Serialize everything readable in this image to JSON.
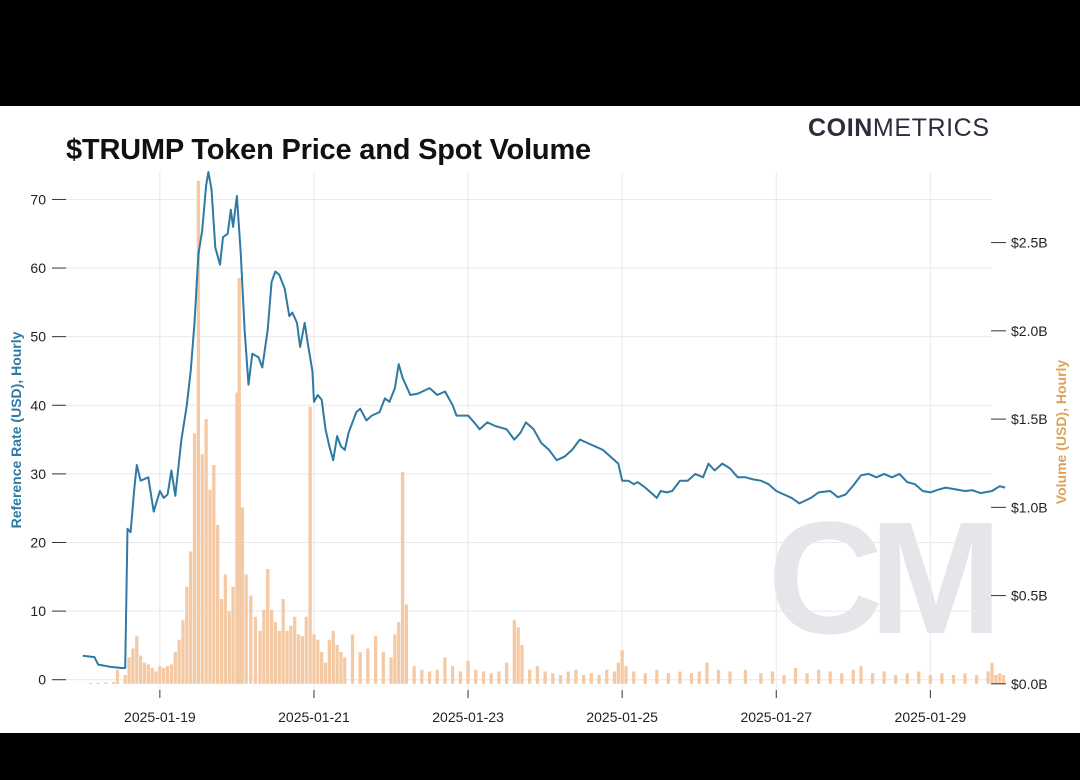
{
  "title": "$TRUMP Token Price and Spot Volume",
  "brand": {
    "strong": "COIN",
    "light": "METRICS"
  },
  "watermark": "CM",
  "colors": {
    "price": "#2e7aa3",
    "volume": "#f4c9a3",
    "volume_label": "#e0a25a",
    "grid": "#e9e9ee",
    "text": "#222222"
  },
  "chart_data": {
    "type": "line",
    "title": "$TRUMP Token Price and Spot Volume",
    "xlabel": "",
    "x_ticks": [
      "2025-01-19",
      "2025-01-21",
      "2025-01-23",
      "2025-01-25",
      "2025-01-27",
      "2025-01-29"
    ],
    "x_range_days": [
      -1.4,
      10.8
    ],
    "x_tick_days": [
      0,
      2,
      4,
      6,
      8,
      10
    ],
    "y_left": {
      "label": "Reference Rate (USD), Hourly",
      "range": [
        -1.5,
        74
      ],
      "ticks": [
        0,
        10,
        20,
        30,
        40,
        50,
        60,
        70
      ],
      "tick_labels": [
        "0",
        "10",
        "20",
        "30",
        "40",
        "50",
        "60",
        "70"
      ]
    },
    "y_right": {
      "label": "Volume (USD), Hourly",
      "range_billions": [
        -0.035,
        2.9
      ],
      "ticks": [
        0,
        0.5,
        1.0,
        1.5,
        2.0,
        2.5
      ],
      "tick_labels": [
        "$0.0B",
        "$0.5B",
        "$1.0B",
        "$1.5B",
        "$2.0B",
        "$2.5B"
      ]
    },
    "series": [
      {
        "name": "Reference Rate (USD), Hourly",
        "type": "line",
        "points": [
          [
            -1.0,
            3.5
          ],
          [
            -0.85,
            3.3
          ],
          [
            -0.8,
            2.2
          ],
          [
            -0.65,
            1.9
          ],
          [
            -0.5,
            1.7
          ],
          [
            -0.45,
            1.7
          ],
          [
            -0.42,
            22
          ],
          [
            -0.38,
            21.5
          ],
          [
            -0.33,
            28
          ],
          [
            -0.3,
            31.3
          ],
          [
            -0.25,
            29
          ],
          [
            -0.15,
            29.5
          ],
          [
            -0.08,
            24.5
          ],
          [
            0.0,
            27.5
          ],
          [
            0.05,
            26.5
          ],
          [
            0.1,
            27
          ],
          [
            0.15,
            30.5
          ],
          [
            0.2,
            26.8
          ],
          [
            0.28,
            35
          ],
          [
            0.35,
            40
          ],
          [
            0.4,
            45
          ],
          [
            0.45,
            52
          ],
          [
            0.5,
            62
          ],
          [
            0.55,
            65.5
          ],
          [
            0.6,
            72
          ],
          [
            0.63,
            74
          ],
          [
            0.67,
            71.5
          ],
          [
            0.72,
            63
          ],
          [
            0.78,
            60.5
          ],
          [
            0.82,
            64.5
          ],
          [
            0.88,
            65
          ],
          [
            0.92,
            68.5
          ],
          [
            0.95,
            66
          ],
          [
            1.0,
            70.5
          ],
          [
            1.05,
            62
          ],
          [
            1.1,
            51
          ],
          [
            1.15,
            43
          ],
          [
            1.2,
            47.5
          ],
          [
            1.28,
            47
          ],
          [
            1.33,
            45.5
          ],
          [
            1.4,
            51
          ],
          [
            1.45,
            58
          ],
          [
            1.5,
            59.5
          ],
          [
            1.55,
            59
          ],
          [
            1.62,
            57
          ],
          [
            1.68,
            53
          ],
          [
            1.72,
            53.5
          ],
          [
            1.78,
            52
          ],
          [
            1.82,
            48.5
          ],
          [
            1.88,
            52
          ],
          [
            1.92,
            49
          ],
          [
            1.98,
            45
          ],
          [
            2.0,
            40.5
          ],
          [
            2.05,
            41.5
          ],
          [
            2.1,
            40.8
          ],
          [
            2.15,
            36.5
          ],
          [
            2.2,
            34
          ],
          [
            2.25,
            32
          ],
          [
            2.3,
            35.5
          ],
          [
            2.35,
            34
          ],
          [
            2.4,
            33.5
          ],
          [
            2.45,
            36
          ],
          [
            2.55,
            39
          ],
          [
            2.6,
            39.5
          ],
          [
            2.68,
            37.8
          ],
          [
            2.75,
            38.5
          ],
          [
            2.85,
            39
          ],
          [
            2.92,
            41
          ],
          [
            2.98,
            40.5
          ],
          [
            3.05,
            42.5
          ],
          [
            3.1,
            46
          ],
          [
            3.15,
            44
          ],
          [
            3.25,
            41.5
          ],
          [
            3.35,
            41.7
          ],
          [
            3.5,
            42.5
          ],
          [
            3.55,
            42
          ],
          [
            3.6,
            41.5
          ],
          [
            3.7,
            42
          ],
          [
            3.8,
            40
          ],
          [
            3.85,
            38.5
          ],
          [
            4.0,
            38.5
          ],
          [
            4.08,
            37.5
          ],
          [
            4.15,
            36.5
          ],
          [
            4.25,
            37.5
          ],
          [
            4.35,
            37
          ],
          [
            4.5,
            36.5
          ],
          [
            4.6,
            35
          ],
          [
            4.68,
            36
          ],
          [
            4.75,
            37.5
          ],
          [
            4.85,
            36.5
          ],
          [
            4.95,
            34.5
          ],
          [
            5.05,
            33.5
          ],
          [
            5.15,
            32
          ],
          [
            5.25,
            32.5
          ],
          [
            5.35,
            33.5
          ],
          [
            5.45,
            35
          ],
          [
            5.55,
            34.5
          ],
          [
            5.65,
            34
          ],
          [
            5.75,
            33.5
          ],
          [
            5.85,
            32.5
          ],
          [
            5.95,
            31.5
          ],
          [
            6.0,
            29
          ],
          [
            6.08,
            29
          ],
          [
            6.15,
            28.5
          ],
          [
            6.2,
            28.8
          ],
          [
            6.3,
            28
          ],
          [
            6.45,
            26.5
          ],
          [
            6.5,
            27.5
          ],
          [
            6.58,
            27.3
          ],
          [
            6.65,
            27.5
          ],
          [
            6.75,
            29
          ],
          [
            6.85,
            29
          ],
          [
            6.95,
            30
          ],
          [
            7.05,
            29.5
          ],
          [
            7.12,
            31.5
          ],
          [
            7.2,
            30.5
          ],
          [
            7.3,
            31.5
          ],
          [
            7.4,
            30.8
          ],
          [
            7.5,
            29.5
          ],
          [
            7.6,
            29.5
          ],
          [
            7.7,
            29.2
          ],
          [
            7.8,
            29
          ],
          [
            7.9,
            28.5
          ],
          [
            8.0,
            27.5
          ],
          [
            8.1,
            27
          ],
          [
            8.2,
            26.5
          ],
          [
            8.3,
            25.7
          ],
          [
            8.45,
            26.5
          ],
          [
            8.55,
            27.3
          ],
          [
            8.7,
            27.5
          ],
          [
            8.8,
            26.6
          ],
          [
            8.9,
            27
          ],
          [
            9.0,
            28.3
          ],
          [
            9.1,
            29.8
          ],
          [
            9.2,
            30
          ],
          [
            9.3,
            29.5
          ],
          [
            9.4,
            30
          ],
          [
            9.5,
            29.5
          ],
          [
            9.6,
            30
          ],
          [
            9.7,
            28.8
          ],
          [
            9.8,
            28.5
          ],
          [
            9.9,
            27.5
          ],
          [
            10.0,
            27.3
          ],
          [
            10.1,
            27.7
          ],
          [
            10.2,
            28
          ],
          [
            10.3,
            27.8
          ],
          [
            10.45,
            27.5
          ],
          [
            10.55,
            27.6
          ],
          [
            10.65,
            27.2
          ],
          [
            10.8,
            27.5
          ],
          [
            10.9,
            28.2
          ],
          [
            10.97,
            28
          ]
        ]
      },
      {
        "name": "Volume (USD), Hourly",
        "type": "bar",
        "values_billions": [
          [
            -0.9,
            0.005
          ],
          [
            -0.8,
            0.005
          ],
          [
            -0.7,
            0.008
          ],
          [
            -0.6,
            0.01
          ],
          [
            -0.55,
            0.08
          ],
          [
            -0.45,
            0.05
          ],
          [
            -0.4,
            0.15
          ],
          [
            -0.35,
            0.2
          ],
          [
            -0.3,
            0.27
          ],
          [
            -0.25,
            0.16
          ],
          [
            -0.2,
            0.12
          ],
          [
            -0.15,
            0.11
          ],
          [
            -0.1,
            0.09
          ],
          [
            -0.05,
            0.07
          ],
          [
            0.0,
            0.1
          ],
          [
            0.05,
            0.09
          ],
          [
            0.1,
            0.1
          ],
          [
            0.15,
            0.11
          ],
          [
            0.2,
            0.18
          ],
          [
            0.25,
            0.25
          ],
          [
            0.3,
            0.36
          ],
          [
            0.35,
            0.55
          ],
          [
            0.4,
            0.75
          ],
          [
            0.45,
            1.42
          ],
          [
            0.5,
            2.85
          ],
          [
            0.55,
            1.3
          ],
          [
            0.6,
            1.5
          ],
          [
            0.65,
            1.1
          ],
          [
            0.7,
            1.24
          ],
          [
            0.75,
            0.9
          ],
          [
            0.8,
            0.48
          ],
          [
            0.85,
            0.62
          ],
          [
            0.9,
            0.41
          ],
          [
            0.95,
            0.55
          ],
          [
            1.0,
            1.65
          ],
          [
            1.03,
            2.3
          ],
          [
            1.07,
            1.0
          ],
          [
            1.12,
            0.62
          ],
          [
            1.18,
            0.5
          ],
          [
            1.24,
            0.38
          ],
          [
            1.3,
            0.3
          ],
          [
            1.35,
            0.42
          ],
          [
            1.4,
            0.65
          ],
          [
            1.45,
            0.42
          ],
          [
            1.5,
            0.35
          ],
          [
            1.55,
            0.3
          ],
          [
            1.6,
            0.48
          ],
          [
            1.65,
            0.3
          ],
          [
            1.7,
            0.33
          ],
          [
            1.75,
            0.38
          ],
          [
            1.8,
            0.28
          ],
          [
            1.85,
            0.27
          ],
          [
            1.9,
            0.38
          ],
          [
            1.95,
            1.57
          ],
          [
            2.0,
            0.28
          ],
          [
            2.05,
            0.25
          ],
          [
            2.1,
            0.18
          ],
          [
            2.15,
            0.12
          ],
          [
            2.2,
            0.25
          ],
          [
            2.25,
            0.3
          ],
          [
            2.3,
            0.22
          ],
          [
            2.35,
            0.18
          ],
          [
            2.4,
            0.15
          ],
          [
            2.5,
            0.28
          ],
          [
            2.6,
            0.18
          ],
          [
            2.7,
            0.2
          ],
          [
            2.8,
            0.27
          ],
          [
            2.9,
            0.18
          ],
          [
            3.0,
            0.15
          ],
          [
            3.05,
            0.28
          ],
          [
            3.1,
            0.35
          ],
          [
            3.15,
            1.2
          ],
          [
            3.2,
            0.45
          ],
          [
            3.3,
            0.1
          ],
          [
            3.4,
            0.08
          ],
          [
            3.5,
            0.07
          ],
          [
            3.6,
            0.08
          ],
          [
            3.7,
            0.15
          ],
          [
            3.8,
            0.1
          ],
          [
            3.9,
            0.07
          ],
          [
            4.0,
            0.13
          ],
          [
            4.1,
            0.08
          ],
          [
            4.2,
            0.07
          ],
          [
            4.3,
            0.06
          ],
          [
            4.4,
            0.07
          ],
          [
            4.5,
            0.12
          ],
          [
            4.6,
            0.36
          ],
          [
            4.65,
            0.32
          ],
          [
            4.7,
            0.22
          ],
          [
            4.8,
            0.08
          ],
          [
            4.9,
            0.1
          ],
          [
            5.0,
            0.07
          ],
          [
            5.1,
            0.06
          ],
          [
            5.2,
            0.05
          ],
          [
            5.3,
            0.07
          ],
          [
            5.4,
            0.08
          ],
          [
            5.5,
            0.05
          ],
          [
            5.6,
            0.06
          ],
          [
            5.7,
            0.05
          ],
          [
            5.8,
            0.08
          ],
          [
            5.9,
            0.07
          ],
          [
            5.95,
            0.12
          ],
          [
            6.0,
            0.19
          ],
          [
            6.05,
            0.1
          ],
          [
            6.15,
            0.07
          ],
          [
            6.3,
            0.06
          ],
          [
            6.45,
            0.08
          ],
          [
            6.6,
            0.06
          ],
          [
            6.75,
            0.07
          ],
          [
            6.9,
            0.06
          ],
          [
            7.0,
            0.07
          ],
          [
            7.1,
            0.12
          ],
          [
            7.25,
            0.08
          ],
          [
            7.4,
            0.07
          ],
          [
            7.6,
            0.08
          ],
          [
            7.8,
            0.06
          ],
          [
            7.95,
            0.07
          ],
          [
            8.1,
            0.05
          ],
          [
            8.25,
            0.09
          ],
          [
            8.4,
            0.06
          ],
          [
            8.55,
            0.08
          ],
          [
            8.7,
            0.07
          ],
          [
            8.85,
            0.06
          ],
          [
            9.0,
            0.08
          ],
          [
            9.1,
            0.1
          ],
          [
            9.25,
            0.06
          ],
          [
            9.4,
            0.07
          ],
          [
            9.55,
            0.05
          ],
          [
            9.7,
            0.06
          ],
          [
            9.85,
            0.07
          ],
          [
            10.0,
            0.05
          ],
          [
            10.15,
            0.06
          ],
          [
            10.3,
            0.05
          ],
          [
            10.45,
            0.06
          ],
          [
            10.6,
            0.05
          ],
          [
            10.75,
            0.07
          ],
          [
            10.8,
            0.12
          ],
          [
            10.85,
            0.05
          ],
          [
            10.9,
            0.06
          ],
          [
            10.95,
            0.05
          ]
        ]
      }
    ]
  }
}
